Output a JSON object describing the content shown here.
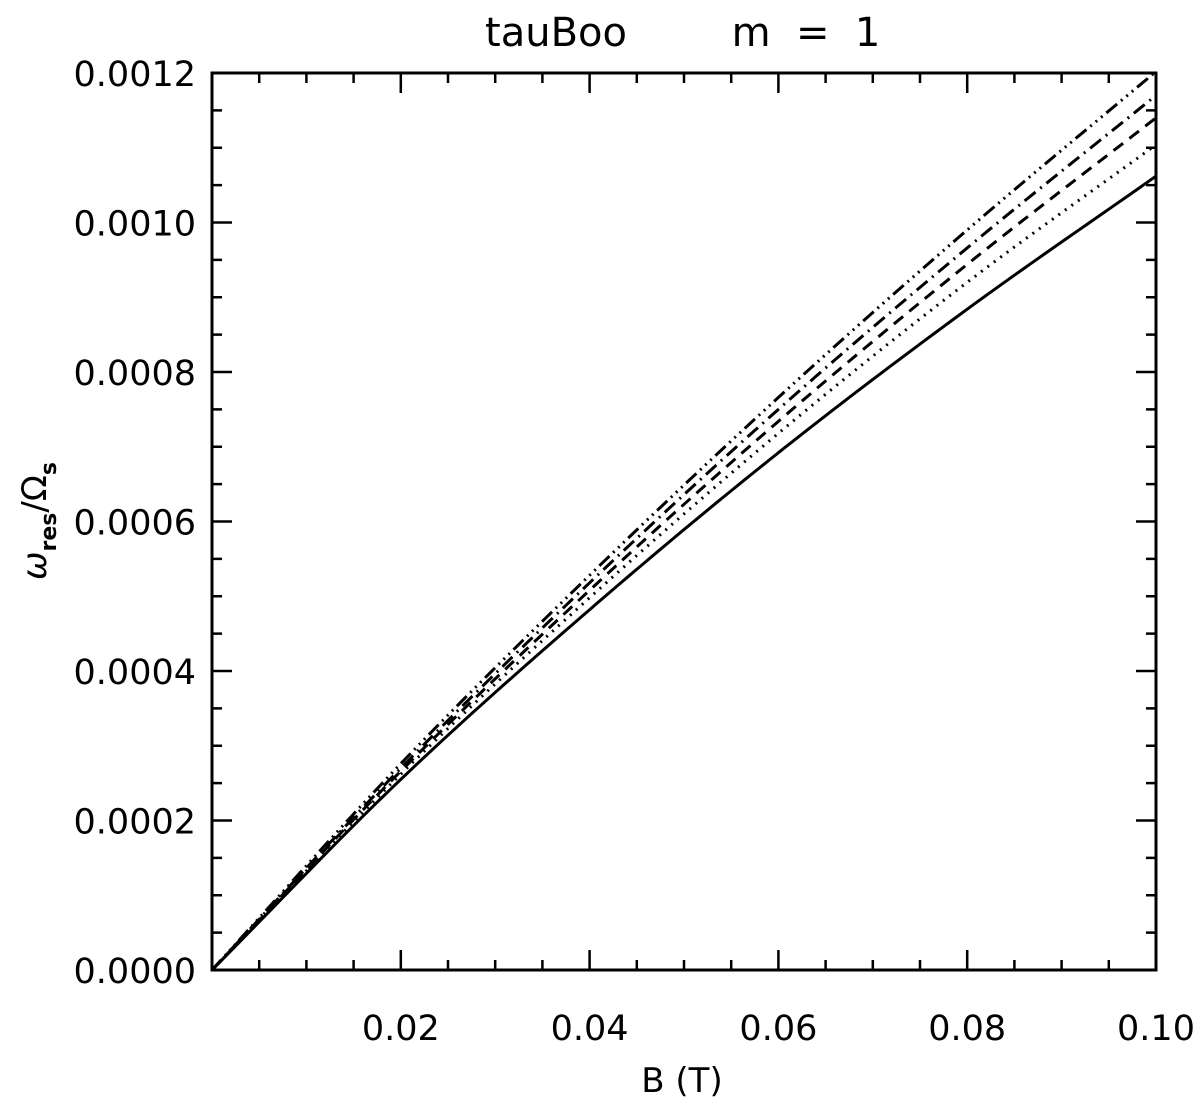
{
  "chart_data": {
    "type": "line",
    "title_name": "tauBoo",
    "title_param": "m  =  1",
    "xlabel": "B (T)",
    "ylabel": {
      "symbol": "ω",
      "symbol_sub": "res",
      "slash": "/",
      "denominator": "Ω",
      "denominator_sub": "s"
    },
    "xlim": [
      0.0,
      0.1
    ],
    "ylim": [
      0.0,
      0.0012
    ],
    "xticks": [
      {
        "value": 0.02,
        "label": "0.02"
      },
      {
        "value": 0.04,
        "label": "0.04"
      },
      {
        "value": 0.06,
        "label": "0.06"
      },
      {
        "value": 0.08,
        "label": "0.08"
      },
      {
        "value": 0.1,
        "label": "0.10"
      }
    ],
    "yticks": [
      {
        "value": 0.0,
        "label": "0.0000"
      },
      {
        "value": 0.0002,
        "label": "0.0002"
      },
      {
        "value": 0.0004,
        "label": "0.0004"
      },
      {
        "value": 0.0006,
        "label": "0.0006"
      },
      {
        "value": 0.0008,
        "label": "0.0008"
      },
      {
        "value": 0.001,
        "label": "0.0010"
      },
      {
        "value": 0.0012,
        "label": "0.0012"
      }
    ],
    "x_minor_step": 0.005,
    "y_minor_step": 5e-05,
    "grid": false,
    "legend": "none",
    "series": [
      {
        "style": "solid",
        "x": [
          0.0,
          0.02,
          0.04,
          0.06,
          0.08,
          0.1
        ],
        "y": [
          0.0,
          0.000255,
          0.000482,
          0.000692,
          0.000884,
          0.001062
        ]
      },
      {
        "style": "dotted",
        "x": [
          0.0,
          0.02,
          0.04,
          0.06,
          0.08,
          0.1
        ],
        "y": [
          0.0,
          0.000262,
          0.000498,
          0.000718,
          0.00092,
          0.001104
        ]
      },
      {
        "style": "dashed",
        "x": [
          0.0,
          0.02,
          0.04,
          0.06,
          0.08,
          0.1
        ],
        "y": [
          0.0,
          0.000266,
          0.000508,
          0.000734,
          0.000944,
          0.00114
        ]
      },
      {
        "style": "dash-dot",
        "x": [
          0.0,
          0.02,
          0.04,
          0.06,
          0.08,
          0.1
        ],
        "y": [
          0.0,
          0.00027,
          0.000518,
          0.00075,
          0.000966,
          0.00117
        ]
      },
      {
        "style": "dash-dot-dot-dot",
        "x": [
          0.0,
          0.02,
          0.04,
          0.06,
          0.08,
          0.1
        ],
        "y": [
          0.0,
          0.000276,
          0.000528,
          0.000766,
          0.00099,
          0.001202
        ]
      }
    ]
  }
}
